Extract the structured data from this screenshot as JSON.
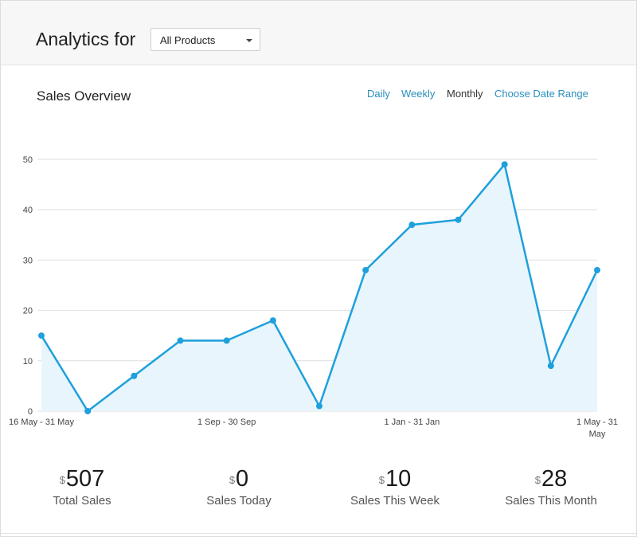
{
  "header": {
    "title": "Analytics for",
    "product_select": {
      "value": "All Products"
    }
  },
  "section": {
    "title": "Sales Overview",
    "ranges": [
      {
        "label": "Daily",
        "active": false
      },
      {
        "label": "Weekly",
        "active": false
      },
      {
        "label": "Monthly",
        "active": true
      },
      {
        "label": "Choose Date Range",
        "active": false
      }
    ]
  },
  "colors": {
    "line": "#1ea0dc",
    "fill": "#e8f5fc",
    "grid": "#dddddd",
    "link": "#2a8fbd"
  },
  "chart_data": {
    "type": "area",
    "x_labels": [
      "16 May - 31 May",
      "1 Sep - 30 Sep",
      "1 Jan - 31 Jan",
      "1 May - 31 May"
    ],
    "label_indices": [
      0,
      4,
      8,
      12
    ],
    "values": [
      15,
      0,
      7,
      14,
      14,
      18,
      1,
      28,
      37,
      38,
      49,
      9,
      28
    ],
    "ylim": [
      0,
      50
    ],
    "yticks": [
      0,
      10,
      20,
      30,
      40,
      50
    ],
    "grid": true
  },
  "stats": [
    {
      "currency": "$",
      "value": "507",
      "label": "Total Sales"
    },
    {
      "currency": "$",
      "value": "0",
      "label": "Sales Today"
    },
    {
      "currency": "$",
      "value": "10",
      "label": "Sales This Week"
    },
    {
      "currency": "$",
      "value": "28",
      "label": "Sales This Month"
    }
  ]
}
